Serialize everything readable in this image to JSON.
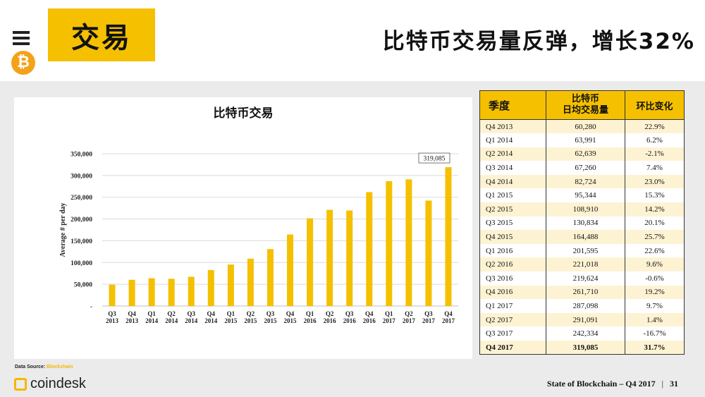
{
  "header": {
    "section": "交易",
    "headline": "比特币交易量反弹，增长32%",
    "bitcoin_symbol": "₿"
  },
  "chart_data": {
    "type": "bar",
    "title": "比特币交易",
    "xlabel": "",
    "ylabel": "Average # per day",
    "ylim": [
      0,
      350000
    ],
    "yticks": [
      "-",
      "50,000",
      "100,000",
      "150,000",
      "200,000",
      "250,000",
      "300,000",
      "350,000"
    ],
    "categories": [
      [
        "Q3",
        "2013"
      ],
      [
        "Q4",
        "2013"
      ],
      [
        "Q1",
        "2014"
      ],
      [
        "Q2",
        "2014"
      ],
      [
        "Q3",
        "2014"
      ],
      [
        "Q4",
        "2014"
      ],
      [
        "Q1",
        "2015"
      ],
      [
        "Q2",
        "2015"
      ],
      [
        "Q3",
        "2015"
      ],
      [
        "Q4",
        "2015"
      ],
      [
        "Q1",
        "2016"
      ],
      [
        "Q2",
        "2016"
      ],
      [
        "Q3",
        "2016"
      ],
      [
        "Q4",
        "2016"
      ],
      [
        "Q1",
        "2017"
      ],
      [
        "Q2",
        "2017"
      ],
      [
        "Q3",
        "2017"
      ],
      [
        "Q4",
        "2017"
      ]
    ],
    "values": [
      49058,
      60280,
      63991,
      62639,
      67260,
      82724,
      95344,
      108910,
      130834,
      164488,
      201595,
      221018,
      219624,
      261710,
      287098,
      291091,
      242334,
      319085
    ],
    "data_label": "319,085",
    "bar_color": "#f5c000"
  },
  "table": {
    "headers": [
      "季度",
      "比特币\n日均交易量",
      "环比变化"
    ],
    "rows": [
      [
        "Q4 2013",
        "60,280",
        "22.9%"
      ],
      [
        "Q1 2014",
        "63,991",
        "6.2%"
      ],
      [
        "Q2 2014",
        "62,639",
        "-2.1%"
      ],
      [
        "Q3 2014",
        "67,260",
        "7.4%"
      ],
      [
        "Q4 2014",
        "82,724",
        "23.0%"
      ],
      [
        "Q1 2015",
        "95,344",
        "15.3%"
      ],
      [
        "Q2 2015",
        "108,910",
        "14.2%"
      ],
      [
        "Q3 2015",
        "130,834",
        "20.1%"
      ],
      [
        "Q4 2015",
        "164,488",
        "25.7%"
      ],
      [
        "Q1 2016",
        "201,595",
        "22.6%"
      ],
      [
        "Q2 2016",
        "221,018",
        "9.6%"
      ],
      [
        "Q3 2016",
        "219,624",
        "-0.6%"
      ],
      [
        "Q4 2016",
        "261,710",
        "19.2%"
      ],
      [
        "Q1 2017",
        "287,098",
        "9.7%"
      ],
      [
        "Q2 2017",
        "291,091",
        "1.4%"
      ],
      [
        "Q3 2017",
        "242,334",
        "-16.7%"
      ],
      [
        "Q4 2017",
        "319,085",
        "31.7%"
      ]
    ]
  },
  "footer": {
    "source_label": "Data Source:",
    "source_link": "Blockchain",
    "logo_text": "coindesk",
    "deck_title": "State of Blockchain – Q4 2017",
    "separator": "|",
    "page_number": "31"
  },
  "colors": {
    "accent": "#f5c000",
    "band": "#ebebeb",
    "bitcoin": "#f4a21a"
  }
}
